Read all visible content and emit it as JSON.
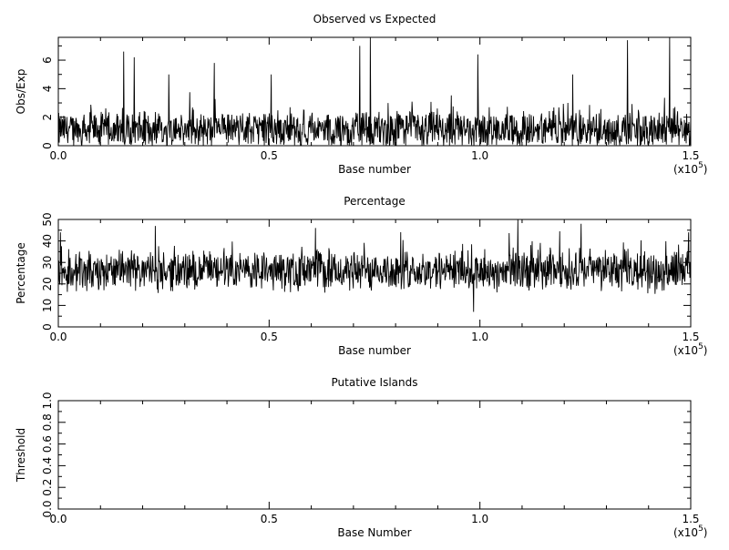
{
  "chart_data": [
    {
      "type": "line",
      "title": "Observed vs Expected",
      "xlabel": "Base number",
      "ylabel": "Obs/Exp",
      "x_range": [
        0,
        150000
      ],
      "ylim": [
        0,
        7.6
      ],
      "x_multiplier": "(x10",
      "x_multiplier_exp": "5",
      "x_multiplier_close": ")",
      "x_ticks": [
        0,
        50000,
        100000,
        150000
      ],
      "x_tick_labels": [
        "0.0",
        "0.5",
        "1.0",
        "1.5"
      ],
      "y_ticks": [
        0,
        2,
        4,
        6
      ],
      "y_tick_labels": [
        "0",
        "2",
        "4",
        "6"
      ],
      "grid": false,
      "series_style": "dense_noise",
      "baseline": 1.1,
      "amplitude": 1.2,
      "point_count": 1400,
      "peaks": [
        {
          "x": 15500,
          "y": 6.6
        },
        {
          "x": 18000,
          "y": 6.2
        },
        {
          "x": 26200,
          "y": 5.0
        },
        {
          "x": 37000,
          "y": 5.8
        },
        {
          "x": 50500,
          "y": 5.0
        },
        {
          "x": 71500,
          "y": 7.0
        },
        {
          "x": 74000,
          "y": 7.6
        },
        {
          "x": 99500,
          "y": 6.4
        },
        {
          "x": 122000,
          "y": 5.0
        },
        {
          "x": 135000,
          "y": 7.4
        },
        {
          "x": 145000,
          "y": 7.6
        }
      ]
    },
    {
      "type": "line",
      "title": "Percentage",
      "xlabel": "Base number",
      "ylabel": "Percentage",
      "x_range": [
        0,
        150000
      ],
      "ylim": [
        0,
        50
      ],
      "x_multiplier": "(x10",
      "x_multiplier_exp": "5",
      "x_multiplier_close": ")",
      "x_ticks": [
        0,
        50000,
        100000,
        150000
      ],
      "x_tick_labels": [
        "0.0",
        "0.5",
        "1.0",
        "1.5"
      ],
      "y_ticks": [
        0,
        10,
        20,
        30,
        40,
        50
      ],
      "y_tick_labels": [
        "0",
        "10",
        "20",
        "30",
        "40",
        "50"
      ],
      "grid": false,
      "series_style": "dense_noise",
      "baseline": 26,
      "amplitude": 9,
      "point_count": 1400,
      "peaks": [
        {
          "x": 500,
          "y": 44
        },
        {
          "x": 23000,
          "y": 47
        },
        {
          "x": 61000,
          "y": 46
        },
        {
          "x": 98500,
          "y": 7
        },
        {
          "x": 109000,
          "y": 51
        },
        {
          "x": 124000,
          "y": 48
        },
        {
          "x": 149500,
          "y": 44
        }
      ]
    },
    {
      "type": "line",
      "title": "Putative Islands",
      "xlabel": "Base Number",
      "ylabel": "Threshold",
      "x_range": [
        0,
        150000
      ],
      "ylim": [
        0,
        1
      ],
      "x_multiplier": "(x10",
      "x_multiplier_exp": "5",
      "x_multiplier_close": ")",
      "x_ticks": [
        0,
        50000,
        100000,
        150000
      ],
      "x_tick_labels": [
        "0.0",
        "0.5",
        "1.0",
        "1.5"
      ],
      "y_ticks": [
        0,
        0.2,
        0.4,
        0.6,
        0.8,
        1.0
      ],
      "y_tick_labels": [
        "0.0",
        "0.2",
        "0.4",
        "0.6",
        "0.8",
        "1.0"
      ],
      "grid": false,
      "series_style": "empty"
    }
  ]
}
